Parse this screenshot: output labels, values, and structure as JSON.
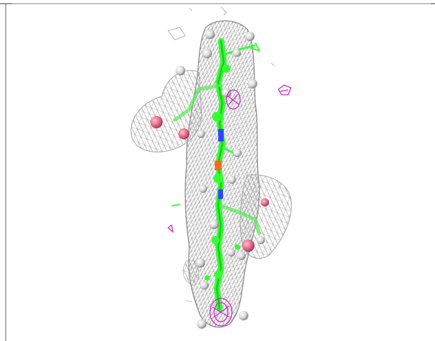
{
  "viewer": {
    "background": "#ffffff",
    "colors": {
      "mesh": "#9a9a9a",
      "mesh_dark": "#6e6e6e",
      "ligand_carbon": "#33ff33",
      "nitrogen": "#3344ff",
      "oxygen": "#ff4444",
      "iron_or_oxygen_orange": "#ff6a1a",
      "hydrogen_sphere": "#d9d9d9",
      "water_pink": "#e86a8c",
      "difference_map": "#cc22cc"
    },
    "icons": [
      "density-mesh-icon",
      "molecule-icon"
    ]
  }
}
